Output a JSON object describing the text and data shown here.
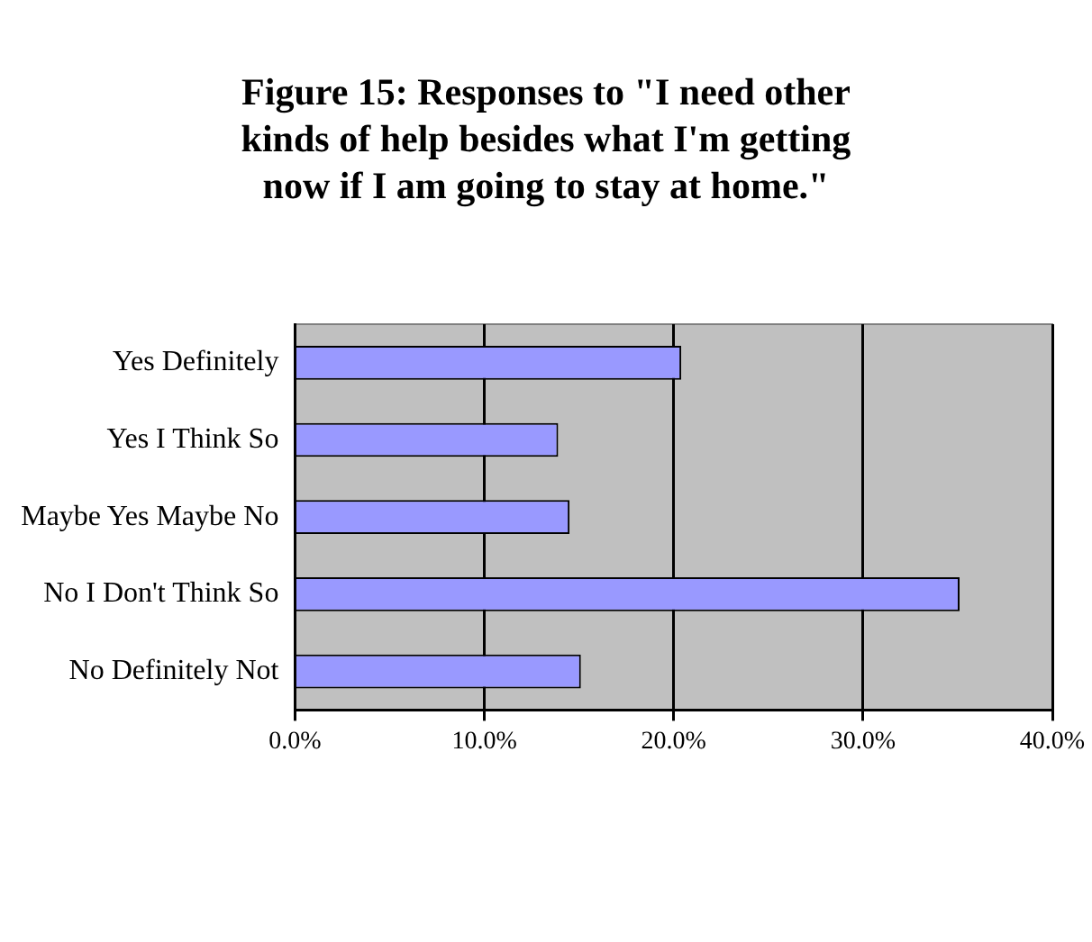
{
  "chart_data": {
    "type": "bar",
    "orientation": "horizontal",
    "title": "Figure 15: Responses to \"I need other kinds of help besides what I'm getting now if I am going to stay at home.\"",
    "categories": [
      "Yes Definitely",
      "Yes I Think So",
      "Maybe Yes Maybe No",
      "No I Don't Think So",
      "No Definitely Not"
    ],
    "values": [
      20.4,
      13.9,
      14.5,
      35.1,
      15.1
    ],
    "color": "#9999ff",
    "xlim": [
      0,
      40
    ],
    "xticks": [
      {
        "value": 0,
        "label": "0.0%"
      },
      {
        "value": 10,
        "label": "10.0%"
      },
      {
        "value": 20,
        "label": "20.0%"
      },
      {
        "value": 30,
        "label": "30.0%"
      },
      {
        "value": 40,
        "label": "40.0%"
      }
    ],
    "grid": "x",
    "legend": false
  }
}
